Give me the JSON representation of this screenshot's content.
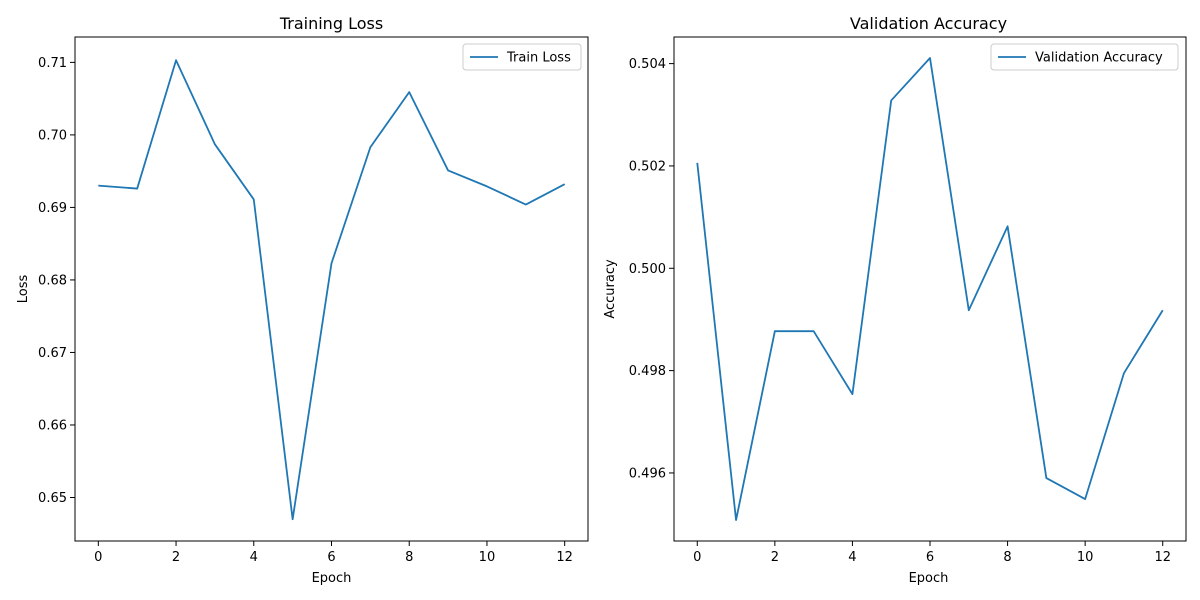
{
  "chart_data": [
    {
      "type": "line",
      "title": "Training Loss",
      "xlabel": "Epoch",
      "ylabel": "Loss",
      "x": [
        0,
        1,
        2,
        3,
        4,
        5,
        6,
        7,
        8,
        9,
        10,
        11,
        12
      ],
      "series": [
        {
          "name": "Train Loss",
          "color": "#1f77b4",
          "values": [
            0.693,
            0.6926,
            0.7103,
            0.6987,
            0.6911,
            0.647,
            0.6823,
            0.6983,
            0.7059,
            0.6951,
            0.6929,
            0.6904,
            0.6932
          ]
        }
      ],
      "xlim": [
        -0.6,
        12.6
      ],
      "ylim": [
        0.644,
        0.7135
      ],
      "xticks": [
        0,
        2,
        4,
        6,
        8,
        10,
        12
      ],
      "yticks": [
        0.65,
        0.66,
        0.67,
        0.68,
        0.69,
        0.7,
        0.71
      ],
      "ytick_labels": [
        "0.65",
        "0.66",
        "0.67",
        "0.68",
        "0.69",
        "0.70",
        "0.71"
      ],
      "grid": false,
      "legend": "top-right"
    },
    {
      "type": "line",
      "title": "Validation Accuracy",
      "xlabel": "Epoch",
      "ylabel": "Accuracy",
      "x": [
        0,
        1,
        2,
        3,
        4,
        5,
        6,
        7,
        8,
        9,
        10,
        11,
        12
      ],
      "series": [
        {
          "name": "Validation Accuracy",
          "color": "#1f77b4",
          "values": [
            0.50206,
            0.49508,
            0.49877,
            0.49877,
            0.49754,
            0.50328,
            0.50411,
            0.49918,
            0.50082,
            0.4959,
            0.49549,
            0.49795,
            0.49918
          ]
        }
      ],
      "xlim": [
        -0.6,
        12.6
      ],
      "ylim": [
        0.49467,
        0.50452
      ],
      "xticks": [
        0,
        2,
        4,
        6,
        8,
        10,
        12
      ],
      "yticks": [
        0.496,
        0.498,
        0.5,
        0.502,
        0.504
      ],
      "ytick_labels": [
        "0.496",
        "0.498",
        "0.500",
        "0.502",
        "0.504"
      ],
      "grid": false,
      "legend": "top-right"
    }
  ]
}
